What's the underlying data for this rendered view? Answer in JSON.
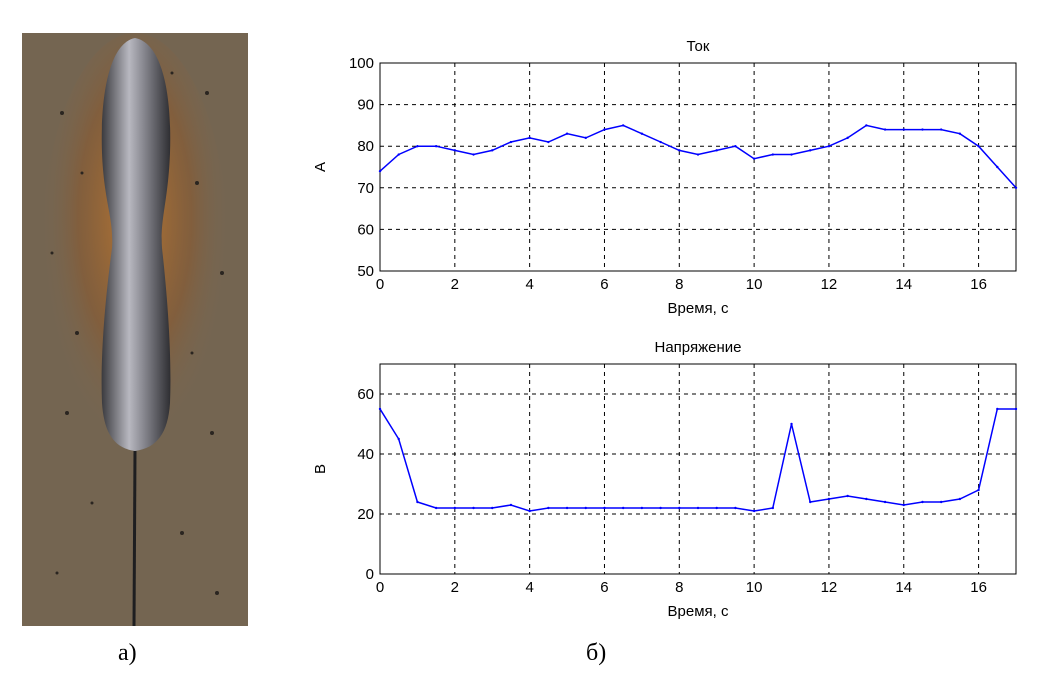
{
  "captions": {
    "a": "а)",
    "b": "б)"
  },
  "photo": {
    "description_icon": "weld-seam-photo",
    "colors": {
      "plate": "#7a6a55",
      "bead": "#9a9aa0",
      "scale": "#c0792f"
    }
  },
  "chart_data": [
    {
      "type": "line",
      "title": "Ток",
      "xlabel": "Время, с",
      "ylabel": "А",
      "xlim": [
        0,
        17
      ],
      "ylim": [
        50,
        100
      ],
      "xticks": [
        0,
        2,
        4,
        6,
        8,
        10,
        12,
        14,
        16
      ],
      "yticks": [
        50,
        60,
        70,
        80,
        90,
        100
      ],
      "grid": true,
      "color": "#0000ff",
      "series": [
        {
          "x": [
            0,
            0.5,
            1,
            1.5,
            2,
            2.5,
            3,
            3.5,
            4,
            4.5,
            5,
            5.5,
            6,
            6.5,
            7,
            7.5,
            8,
            8.5,
            9,
            9.5,
            10,
            10.5,
            11,
            11.5,
            12,
            12.5,
            13,
            13.5,
            14,
            14.5,
            15,
            15.5,
            16,
            16.5,
            17
          ],
          "values": [
            74,
            78,
            80,
            80,
            79,
            78,
            79,
            81,
            82,
            81,
            83,
            82,
            84,
            85,
            83,
            81,
            79,
            78,
            79,
            80,
            77,
            78,
            78,
            79,
            80,
            82,
            85,
            84,
            84,
            84,
            84,
            83,
            80,
            75,
            70
          ]
        }
      ]
    },
    {
      "type": "line",
      "title": "Напряжение",
      "xlabel": "Время, с",
      "ylabel": "В",
      "xlim": [
        0,
        17
      ],
      "ylim": [
        0,
        70
      ],
      "xticks": [
        0,
        2,
        4,
        6,
        8,
        10,
        12,
        14,
        16
      ],
      "yticks": [
        0,
        20,
        40,
        60
      ],
      "grid": true,
      "color": "#0000ff",
      "series": [
        {
          "x": [
            0,
            0.5,
            1,
            1.5,
            2,
            2.5,
            3,
            3.5,
            4,
            4.5,
            5,
            5.5,
            6,
            6.5,
            7,
            7.5,
            8,
            8.5,
            9,
            9.5,
            10,
            10.5,
            11,
            11.5,
            12,
            12.5,
            13,
            13.5,
            14,
            14.5,
            15,
            15.5,
            16,
            16.5,
            17
          ],
          "values": [
            55,
            45,
            24,
            22,
            22,
            22,
            22,
            23,
            21,
            22,
            22,
            22,
            22,
            22,
            22,
            22,
            22,
            22,
            22,
            22,
            21,
            22,
            50,
            24,
            25,
            26,
            25,
            24,
            23,
            24,
            24,
            25,
            28,
            55,
            55
          ]
        }
      ]
    }
  ]
}
